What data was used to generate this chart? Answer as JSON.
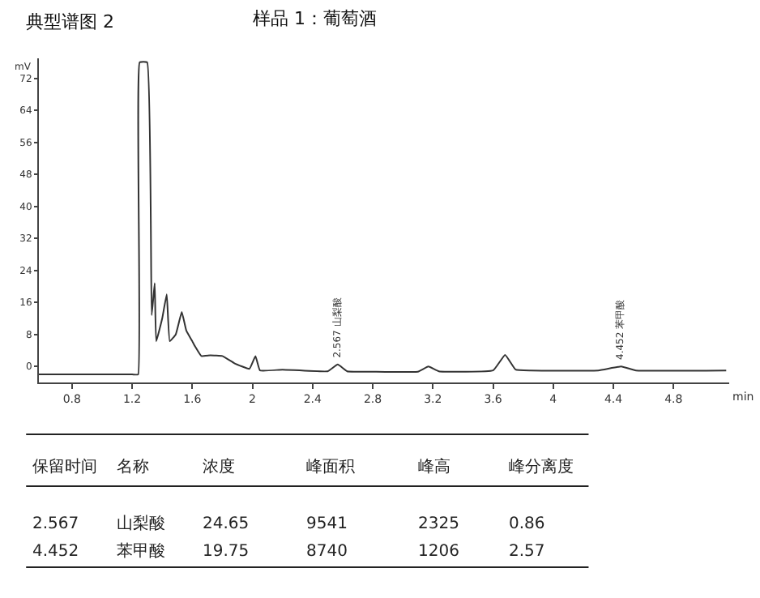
{
  "chart_data": {
    "type": "line",
    "title": "样品 1：葡萄酒",
    "subtitle": "典型谱图 2",
    "xlabel": "min",
    "ylabel": "mV",
    "x": [
      0.58,
      1.2,
      1.24,
      1.25,
      1.3,
      1.33,
      1.35,
      1.36,
      1.4,
      1.43,
      1.45,
      1.49,
      1.53,
      1.56,
      1.6,
      1.62,
      1.66,
      1.72,
      1.8,
      1.88,
      1.98,
      2.02,
      2.05,
      2.2,
      2.5,
      2.567,
      2.63,
      2.8,
      3.1,
      3.17,
      3.24,
      3.6,
      3.68,
      3.75,
      3.85,
      4.3,
      4.452,
      4.55,
      5.15
    ],
    "series": [
      {
        "color": "#333333",
        "values": [
          -2,
          -2,
          -2,
          76,
          76,
          12.8,
          20.8,
          6.3,
          12,
          18,
          6.3,
          8,
          13.6,
          9,
          6.3,
          4.9,
          2.6,
          2.8,
          2.6,
          0.8,
          -0.6,
          2.6,
          -1,
          -0.8,
          -1.2,
          0.5,
          -1.2,
          -1.3,
          -1.3,
          0,
          -1.2,
          -1,
          2.9,
          -0.8,
          -1,
          -1,
          0,
          -1,
          -1
        ]
      }
    ],
    "xlim": [
      0.58,
      5.17
    ],
    "ylim": [
      -4,
      77
    ],
    "xticks": [
      0.8,
      1.2,
      1.6,
      2,
      2.4,
      2.8,
      3.2,
      3.6,
      4,
      4.4,
      4.8
    ],
    "yticks": [
      0,
      8,
      16,
      24,
      32,
      40,
      48,
      56,
      64,
      72
    ],
    "marker": "none",
    "line_style": "solid",
    "annotations": [
      {
        "text": "2.567 山梨酸",
        "x": 2.567,
        "y": 0.5
      },
      {
        "text": "4.452 苯甲酸",
        "x": 4.452,
        "y": 0
      },
      "保留时间",
      "名称",
      "浓度",
      "峰面积",
      "峰高",
      "峰分离度",
      "2.567",
      "山梨酸",
      "24.65",
      "9541",
      "2325",
      "0.86",
      "4.452",
      "苯甲酸",
      "19.75",
      "8740",
      "1206",
      "2.57"
    ]
  }
}
